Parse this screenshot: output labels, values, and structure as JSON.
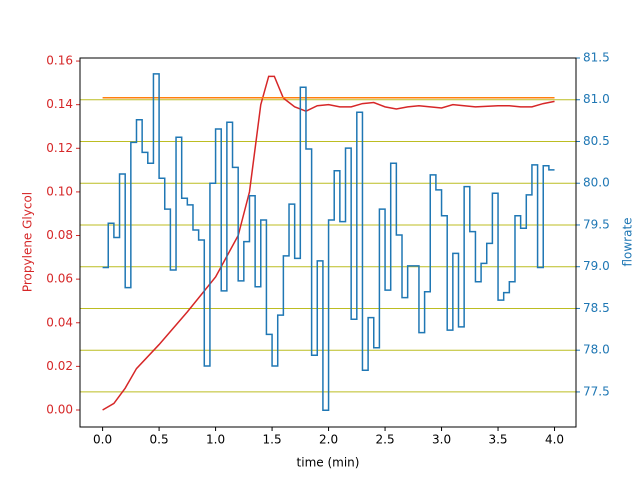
{
  "chart_data": {
    "type": "line",
    "xlabel": "time (min)",
    "ylabel": "Propylene Glycol",
    "y2label": "flowrate",
    "xlim": [
      -0.2,
      4.19
    ],
    "ylim": [
      -0.0078,
      0.1614
    ],
    "y2lim": [
      77.08,
      81.5
    ],
    "xticks": [
      {
        "value": 0,
        "label": "0.0"
      },
      0.5,
      {
        "value": 1,
        "label": "1.0"
      },
      1.5,
      {
        "value": 2,
        "label": "2.0"
      },
      2.5,
      {
        "value": 3,
        "label": "3.0"
      },
      3.5,
      {
        "value": 4,
        "label": "4.0"
      }
    ],
    "yticks": [
      {
        "value": 0,
        "label": "0.00"
      },
      {
        "value": 0.02,
        "label": "0.02"
      },
      {
        "value": 0.04,
        "label": "0.04"
      },
      {
        "value": 0.06,
        "label": "0.06"
      },
      {
        "value": 0.08,
        "label": "0.08"
      },
      {
        "value": 0.1,
        "label": "0.10"
      },
      {
        "value": 0.12,
        "label": "0.12"
      },
      {
        "value": 0.14,
        "label": "0.14"
      },
      {
        "value": 0.16,
        "label": "0.16"
      }
    ],
    "y2ticks": [
      77.5,
      {
        "value": 78,
        "label": "78.0"
      },
      78.5,
      {
        "value": 79,
        "label": "79.0"
      },
      79.5,
      {
        "value": 80,
        "label": "80.0"
      },
      80.5,
      {
        "value": 81,
        "label": "81.0"
      },
      81.5
    ],
    "grid": "y2",
    "grid_color": "#bcbd22",
    "ylabel_color": "#d62728",
    "y2label_color": "#1f77b4",
    "series": [
      {
        "color": "#d62728",
        "x": [
          0,
          0.1,
          0.2,
          0.3,
          0.5,
          0.75,
          1.0,
          1.2,
          1.3,
          1.4,
          1.47,
          1.52,
          1.6,
          1.7,
          1.8,
          1.9,
          2.0,
          2.1,
          2.2,
          2.3,
          2.4,
          2.5,
          2.6,
          2.7,
          2.8,
          2.9,
          3.0,
          3.1,
          3.2,
          3.3,
          3.5,
          3.6,
          3.7,
          3.8,
          3.9,
          4.0
        ],
        "values": [
          0,
          0.003,
          0.01,
          0.019,
          0.03,
          0.045,
          0.061,
          0.08,
          0.1,
          0.14,
          0.153,
          0.153,
          0.143,
          0.139,
          0.137,
          0.1395,
          0.14,
          0.139,
          0.139,
          0.1405,
          0.141,
          0.139,
          0.138,
          0.139,
          0.1395,
          0.139,
          0.1385,
          0.14,
          0.1395,
          0.139,
          0.1395,
          0.1395,
          0.139,
          0.139,
          0.1405,
          0.1415
        ]
      },
      {
        "color": "#ff7f0e",
        "x": [
          0,
          4.0
        ],
        "values": [
          0.1432,
          0.1432
        ]
      },
      {
        "color": "#1f77b4",
        "axis": "y2",
        "drawstyle": "steps-post",
        "x": [
          0,
          0.05,
          0.1,
          0.15,
          0.2,
          0.25,
          0.3,
          0.35,
          0.4,
          0.45,
          0.5,
          0.55,
          0.6,
          0.65,
          0.7,
          0.75,
          0.8,
          0.85,
          0.9,
          0.95,
          1.0,
          1.05,
          1.1,
          1.15,
          1.2,
          1.25,
          1.3,
          1.35,
          1.4,
          1.45,
          1.5,
          1.55,
          1.6,
          1.65,
          1.7,
          1.75,
          1.8,
          1.85,
          1.9,
          1.95,
          2.0,
          2.05,
          2.1,
          2.15,
          2.2,
          2.25,
          2.3,
          2.35,
          2.4,
          2.45,
          2.5,
          2.55,
          2.6,
          2.65,
          2.7,
          2.75,
          2.8,
          2.85,
          2.9,
          2.95,
          3.0,
          3.05,
          3.1,
          3.15,
          3.2,
          3.25,
          3.3,
          3.35,
          3.4,
          3.45,
          3.5,
          3.55,
          3.6,
          3.65,
          3.7,
          3.75,
          3.8,
          3.85,
          3.9,
          3.95
        ],
        "values": [
          78.99,
          79.52,
          79.35,
          80.11,
          78.75,
          80.49,
          80.76,
          80.37,
          80.24,
          81.31,
          80.06,
          79.69,
          78.96,
          80.55,
          79.82,
          79.74,
          79.44,
          79.32,
          77.81,
          80.0,
          80.65,
          78.71,
          80.73,
          80.19,
          78.83,
          79.3,
          79.85,
          78.76,
          79.56,
          78.19,
          77.81,
          78.42,
          79.13,
          79.75,
          79.1,
          81.15,
          80.41,
          77.94,
          79.07,
          77.28,
          79.56,
          80.15,
          79.54,
          80.42,
          78.37,
          80.85,
          77.76,
          78.39,
          78.03,
          79.69,
          78.72,
          80.24,
          79.38,
          78.63,
          79.01,
          79.01,
          78.21,
          78.7,
          80.1,
          79.92,
          79.61,
          78.24,
          79.16,
          78.28,
          79.96,
          79.42,
          78.82,
          79.04,
          79.28,
          79.88,
          78.6,
          78.69,
          78.82,
          79.61,
          79.46,
          79.86,
          80.22,
          78.99,
          80.21,
          80.16
        ]
      }
    ]
  }
}
